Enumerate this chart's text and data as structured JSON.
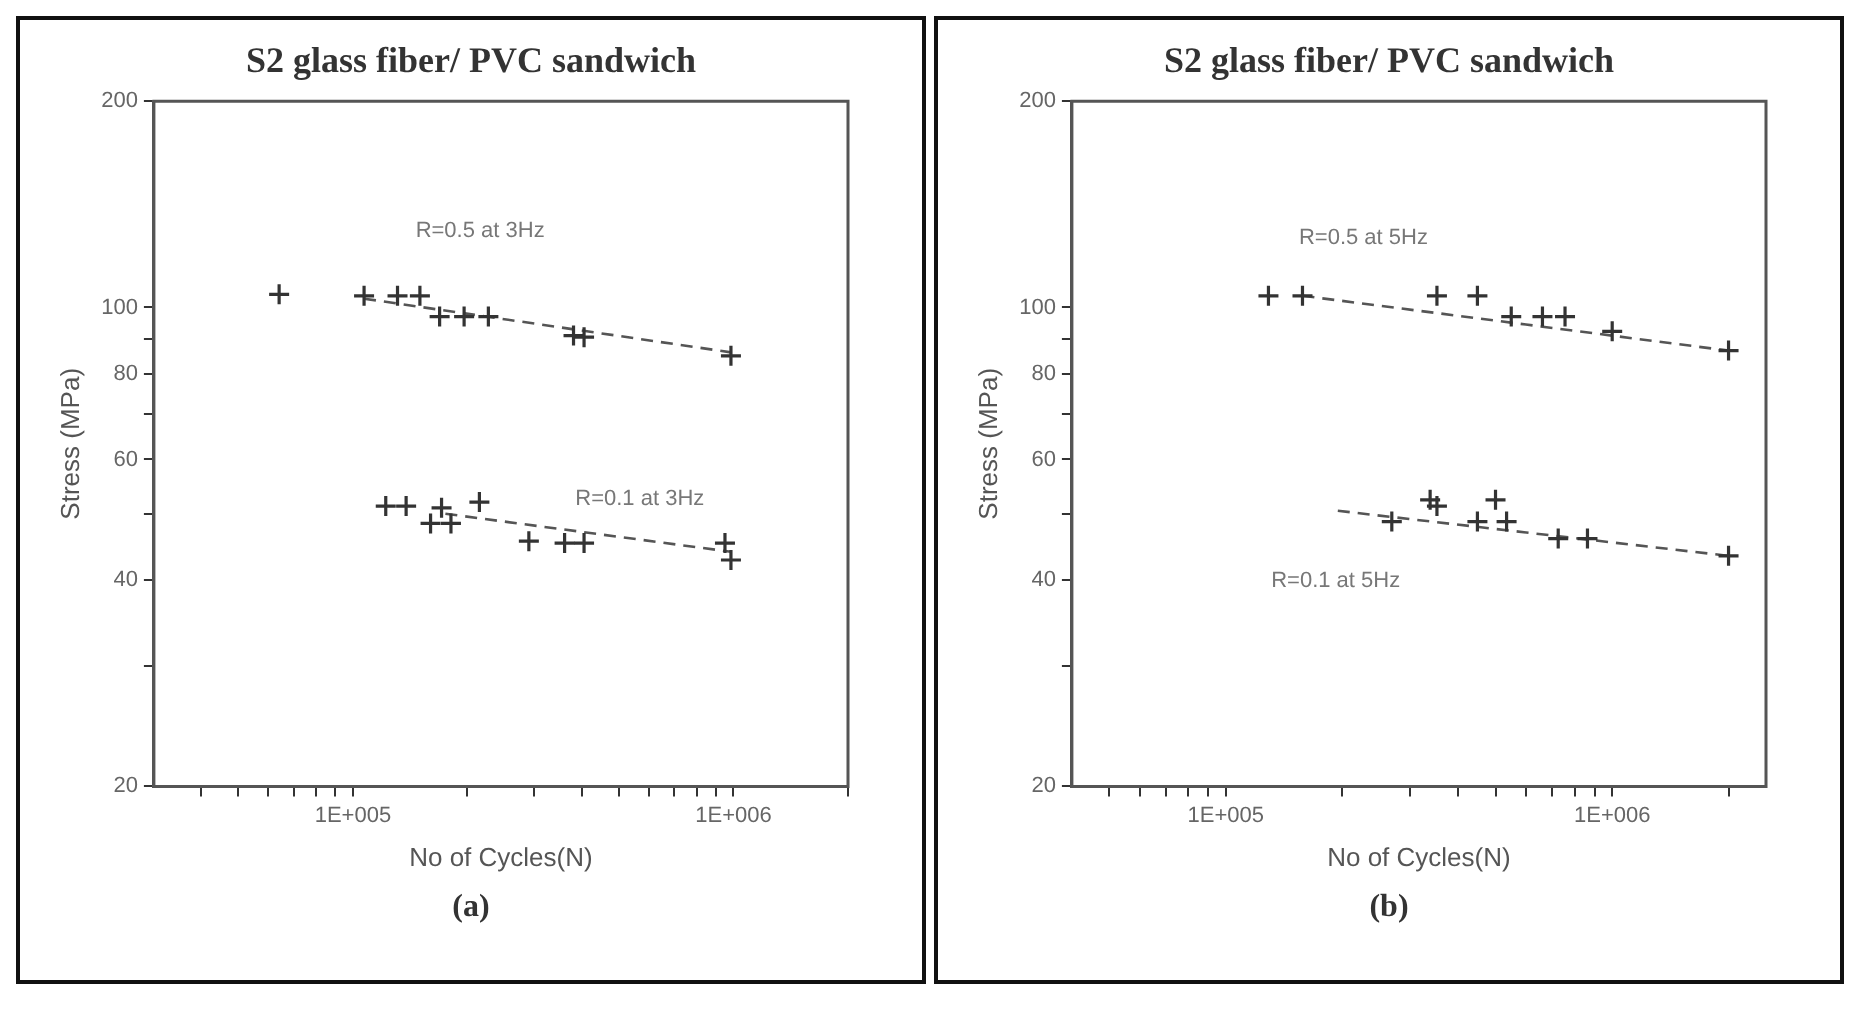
{
  "chart_data": [
    {
      "type": "scatter",
      "title": "S2 glass fiber/ PVC sandwich",
      "xlabel": "No of Cycles(N)",
      "ylabel": "Stress (MPa)",
      "log": "xy",
      "xlim": [
        30000,
        2000000
      ],
      "ylim": [
        20,
        200
      ],
      "xticks": [
        {
          "value": 40000,
          "label": null
        },
        {
          "value": 50000,
          "label": null
        },
        {
          "value": 60000,
          "label": null
        },
        {
          "value": 70000,
          "label": null
        },
        {
          "value": 80000,
          "label": null
        },
        {
          "value": 90000,
          "label": null
        },
        {
          "value": 100000,
          "label": "1E+005"
        },
        {
          "value": 200000,
          "label": null
        },
        {
          "value": 300000,
          "label": null
        },
        {
          "value": 400000,
          "label": null
        },
        {
          "value": 500000,
          "label": null
        },
        {
          "value": 600000,
          "label": null
        },
        {
          "value": 700000,
          "label": null
        },
        {
          "value": 800000,
          "label": null
        },
        {
          "value": 900000,
          "label": null
        },
        {
          "value": 1000000,
          "label": "1E+006"
        },
        {
          "value": 2000000,
          "label": null
        }
      ],
      "yticks": [
        20,
        {
          "value": 30,
          "label": null
        },
        40,
        {
          "value": 50,
          "label": null
        },
        60,
        {
          "value": 70,
          "label": null
        },
        80,
        {
          "value": 90,
          "label": null
        },
        100,
        200
      ],
      "grid": false,
      "marker": "cross",
      "series": [
        {
          "color": "#333333",
          "x": [
            64000,
            107000,
            131000,
            150000,
            169000,
            196000,
            227000,
            380000,
            405000,
            985000
          ],
          "values": [
            104.5,
            104,
            104,
            104,
            97,
            97,
            97,
            91,
            90.5,
            85
          ]
        },
        {
          "color": "#333333",
          "x": [
            122000,
            138000,
            171000,
            160000,
            181000,
            215000,
            290000,
            360000,
            405000,
            950000,
            985000
          ],
          "values": [
            51.3,
            51.3,
            51,
            48.4,
            48.4,
            52,
            45.6,
            45.3,
            45.3,
            45.3,
            42.8
          ]
        },
        {
          "type": "line",
          "color": "#555555",
          "line_style": "dashed",
          "marker": "none",
          "x": [
            107000,
            985000
          ],
          "values": [
            103,
            86
          ]
        },
        {
          "type": "line",
          "color": "#555555",
          "line_style": "dashed",
          "marker": "none",
          "x": [
            175000,
            985000
          ],
          "values": [
            50,
            44
          ]
        }
      ],
      "annotations": [
        "R=0.5 at 3Hz",
        "R=0.1 at 3Hz",
        "(a)"
      ]
    },
    {
      "type": "scatter",
      "title": "S2 glass fiber/ PVC sandwich",
      "xlabel": "No of Cycles(N)",
      "ylabel": "Stress (MPa)",
      "log": "xy",
      "xlim": [
        40000,
        2500000
      ],
      "ylim": [
        20,
        200
      ],
      "xticks": [
        {
          "value": 50000,
          "label": null
        },
        {
          "value": 60000,
          "label": null
        },
        {
          "value": 70000,
          "label": null
        },
        {
          "value": 80000,
          "label": null
        },
        {
          "value": 90000,
          "label": null
        },
        {
          "value": 100000,
          "label": "1E+005"
        },
        {
          "value": 200000,
          "label": null
        },
        {
          "value": 300000,
          "label": null
        },
        {
          "value": 400000,
          "label": null
        },
        {
          "value": 500000,
          "label": null
        },
        {
          "value": 600000,
          "label": null
        },
        {
          "value": 700000,
          "label": null
        },
        {
          "value": 800000,
          "label": null
        },
        {
          "value": 900000,
          "label": null
        },
        {
          "value": 1000000,
          "label": "1E+006"
        },
        {
          "value": 2000000,
          "label": null
        }
      ],
      "yticks": [
        20,
        {
          "value": 30,
          "label": null
        },
        40,
        {
          "value": 50,
          "label": null
        },
        60,
        {
          "value": 70,
          "label": null
        },
        80,
        {
          "value": 90,
          "label": null
        },
        100,
        200
      ],
      "grid": false,
      "marker": "cross",
      "series": [
        {
          "color": "#333333",
          "x": [
            129000,
            158000,
            352000,
            448000,
            548000,
            660000,
            755000,
            1000000,
            2000000
          ],
          "values": [
            104,
            104,
            104,
            104,
            97,
            97,
            97,
            92.3,
            86.5
          ]
        },
        {
          "color": "#333333",
          "x": [
            269000,
            338000,
            352000,
            448000,
            499000,
            533000,
            725000,
            863000,
            2000000
          ],
          "values": [
            48.7,
            52.4,
            51.3,
            48.7,
            52.4,
            48.7,
            46,
            46,
            43.4
          ]
        },
        {
          "type": "line",
          "color": "#555555",
          "line_style": "dashed",
          "marker": "none",
          "x": [
            158000,
            2000000
          ],
          "values": [
            104,
            86.5
          ]
        },
        {
          "type": "line",
          "color": "#555555",
          "line_style": "dashed",
          "marker": "none",
          "x": [
            195000,
            2000000
          ],
          "values": [
            50.5,
            43.4
          ]
        }
      ],
      "annotations": [
        "R=0.5 at 5Hz",
        "R=0.1 at 5Hz",
        "(b)"
      ]
    }
  ]
}
